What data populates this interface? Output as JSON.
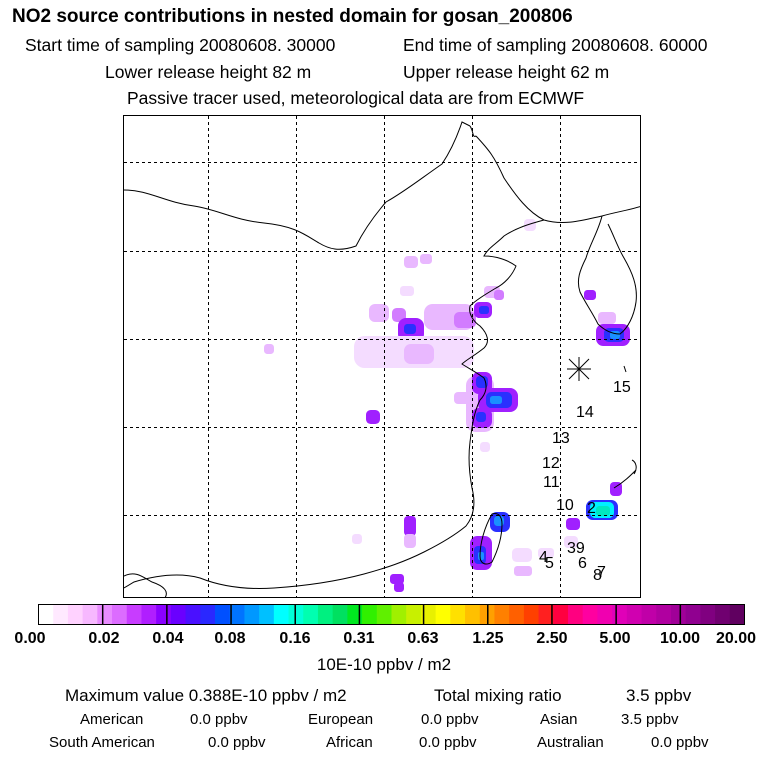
{
  "header": {
    "title": "NO2 source contributions in nested domain for gosan_200806",
    "start_time": "Start time of sampling 20080608. 30000",
    "end_time": "End time of sampling 20080608. 60000",
    "lower_release": "Lower release height   82 m",
    "upper_release": "Upper release height   62 m",
    "note": "Passive tracer used, meteorological data are from ECMWF"
  },
  "chart_data": {
    "type": "heatmap",
    "title": "NO2 source contributions in nested domain for gosan_200806",
    "grid": true,
    "colorbar": {
      "ticks": [
        "0.00",
        "0.02",
        "0.04",
        "0.08",
        "0.16",
        "0.31",
        "0.63",
        "1.25",
        "2.50",
        "5.00",
        "10.00",
        "20.00"
      ],
      "unit": "10E-10 ppbv / m2",
      "colors": [
        "#ffffff",
        "#ffe9ff",
        "#ffd2ff",
        "#f7b8ff",
        "#e98cff",
        "#dc6cff",
        "#c83cff",
        "#b01eff",
        "#8a00ff",
        "#6a00ff",
        "#4a10ff",
        "#2a28ff",
        "#0050ff",
        "#0074ff",
        "#0098ff",
        "#00c0ff",
        "#00ffff",
        "#00ffd8",
        "#00ffb0",
        "#00f080",
        "#00e060",
        "#00e820",
        "#30f000",
        "#60f000",
        "#a0f000",
        "#c8f000",
        "#e8f000",
        "#ffff00",
        "#ffe000",
        "#ffc000",
        "#ffa000",
        "#ff8000",
        "#ff6000",
        "#ff4000",
        "#ff2020",
        "#ff0040",
        "#ff0080",
        "#ff00a0",
        "#f000b0",
        "#e000b8",
        "#d000b0",
        "#c000a8",
        "#b000a0",
        "#a00098",
        "#900090",
        "#800080",
        "#700070",
        "#600060"
      ]
    },
    "hotspot_colors": {
      "faint": "#f4dcff",
      "light": "#e9b8ff",
      "medium": "#d27cff",
      "purple": "#a020ff",
      "blue": "#2a30ff",
      "sky": "#1a90ff",
      "cyan": "#00f0ff",
      "teal": "#00e8c0"
    },
    "station_label_color": "#000000",
    "track_labels": [
      "15",
      "14",
      "13",
      "12",
      "11",
      "10",
      "2",
      "39",
      "6",
      "7",
      "8",
      "4",
      "5"
    ]
  },
  "stats": {
    "max_label": "Maximum value  0.388E-10 ppbv / m2",
    "total_label": "Total mixing ratio",
    "total_value": "3.5 ppbv",
    "american_label": "American",
    "american_value": "0.0 ppbv",
    "european_label": "European",
    "european_value": "0.0 ppbv",
    "asian_label": "Asian",
    "asian_value": "3.5 ppbv",
    "south_american_label": "South American",
    "south_american_value": "0.0 ppbv",
    "african_label": "African",
    "african_value": "0.0 ppbv",
    "australian_label": "Australian",
    "australian_value": "0.0 ppbv"
  }
}
